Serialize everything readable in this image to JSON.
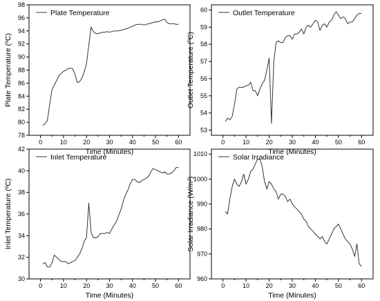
{
  "chart_data": [
    {
      "type": "line",
      "xlabel": "Time (Minutes)",
      "ylabel": "Plate Temperature (ºC)",
      "legend": "top-left",
      "grid": false,
      "xlim": [
        -5,
        65
      ],
      "ylim": [
        78,
        98
      ],
      "xticks": [
        "0",
        "10",
        "20",
        "30",
        "40",
        "50",
        "60"
      ],
      "yticks": [
        "78",
        "80",
        "82",
        "84",
        "86",
        "88",
        "90",
        "92",
        "94",
        "96",
        "98"
      ],
      "series": [
        {
          "name": "Plate Temperature",
          "color": "#333333",
          "x": [
            1,
            2,
            3,
            4,
            5,
            6,
            7,
            8,
            9,
            10,
            11,
            12,
            13,
            14,
            15,
            16,
            17,
            18,
            19,
            20,
            21,
            22,
            23,
            24,
            25,
            26,
            27,
            28,
            29,
            30,
            31,
            32,
            33,
            34,
            35,
            36,
            37,
            38,
            39,
            40,
            41,
            42,
            43,
            44,
            45,
            46,
            47,
            48,
            49,
            50,
            51,
            52,
            53,
            54,
            55,
            56,
            57,
            58,
            59,
            60
          ],
          "y": [
            79.5,
            79.8,
            80.3,
            82.8,
            85.0,
            85.7,
            86.4,
            87.1,
            87.5,
            87.8,
            88.0,
            88.2,
            88.3,
            88.2,
            87.3,
            86.1,
            86.2,
            86.8,
            87.7,
            89.0,
            91.8,
            94.6,
            93.9,
            93.6,
            93.6,
            93.7,
            93.8,
            93.8,
            93.9,
            93.8,
            93.9,
            94.0,
            94.0,
            94.0,
            94.1,
            94.2,
            94.3,
            94.4,
            94.6,
            94.7,
            94.9,
            95.0,
            95.0,
            95.0,
            94.9,
            95.0,
            95.1,
            95.2,
            95.3,
            95.4,
            95.4,
            95.5,
            95.7,
            95.8,
            95.3,
            95.1,
            95.1,
            95.1,
            95.0,
            95.0
          ]
        }
      ]
    },
    {
      "type": "line",
      "xlabel": "Time (Minutes)",
      "ylabel": "Outlet Temperature (ºC)",
      "legend": "top-left",
      "grid": false,
      "xlim": [
        -5,
        65
      ],
      "ylim": [
        52.7,
        60.3
      ],
      "xticks": [
        "0",
        "10",
        "20",
        "30",
        "40",
        "50",
        "60"
      ],
      "yticks": [
        "53",
        "54",
        "55",
        "56",
        "57",
        "58",
        "59",
        "60"
      ],
      "series": [
        {
          "name": "Outlet Temperature",
          "color": "#333333",
          "x": [
            1,
            2,
            3,
            4,
            5,
            6,
            7,
            8,
            9,
            10,
            11,
            12,
            13,
            14,
            15,
            16,
            17,
            18,
            19,
            20,
            21,
            22,
            23,
            24,
            25,
            26,
            27,
            28,
            29,
            30,
            31,
            32,
            33,
            34,
            35,
            36,
            37,
            38,
            39,
            40,
            41,
            42,
            43,
            44,
            45,
            46,
            47,
            48,
            49,
            50,
            51,
            52,
            53,
            54,
            55,
            56,
            57,
            58,
            59,
            60
          ],
          "y": [
            53.5,
            53.7,
            53.6,
            53.8,
            54.5,
            55.4,
            55.5,
            55.5,
            55.5,
            55.6,
            55.6,
            55.8,
            55.3,
            55.3,
            55.0,
            55.4,
            55.7,
            55.9,
            56.5,
            57.2,
            53.4,
            57.0,
            58.1,
            58.2,
            58.1,
            58.1,
            58.4,
            58.5,
            58.5,
            58.3,
            58.6,
            58.6,
            58.7,
            58.9,
            58.6,
            59.0,
            59.1,
            59.0,
            59.2,
            59.4,
            59.3,
            58.8,
            59.1,
            59.2,
            59.0,
            59.3,
            59.4,
            59.7,
            59.9,
            59.7,
            59.5,
            59.6,
            59.5,
            59.2,
            59.3,
            59.3,
            59.5,
            59.7,
            59.8,
            59.8
          ]
        }
      ]
    },
    {
      "type": "line",
      "xlabel": "Time (Minutes)",
      "ylabel": "Inlet Temperature (ºC)",
      "legend": "top-left",
      "grid": false,
      "xlim": [
        -5,
        65
      ],
      "ylim": [
        30,
        42
      ],
      "xticks": [
        "0",
        "10",
        "20",
        "30",
        "40",
        "50",
        "60"
      ],
      "yticks": [
        "30",
        "32",
        "34",
        "36",
        "38",
        "40",
        "42"
      ],
      "series": [
        {
          "name": "Inlet Temperature",
          "color": "#333333",
          "x": [
            1,
            2,
            3,
            4,
            5,
            6,
            7,
            8,
            9,
            10,
            11,
            12,
            13,
            14,
            15,
            16,
            17,
            18,
            19,
            20,
            21,
            22,
            23,
            24,
            25,
            26,
            27,
            28,
            29,
            30,
            31,
            32,
            33,
            34,
            35,
            36,
            37,
            38,
            39,
            40,
            41,
            42,
            43,
            44,
            45,
            46,
            47,
            48,
            49,
            50,
            51,
            52,
            53,
            54,
            55,
            56,
            57,
            58,
            59,
            60
          ],
          "y": [
            31.4,
            31.5,
            31.1,
            31.1,
            31.5,
            32.2,
            32.0,
            31.8,
            31.6,
            31.6,
            31.6,
            31.4,
            31.5,
            31.6,
            31.7,
            32.0,
            32.3,
            32.8,
            33.5,
            33.8,
            37.0,
            34.3,
            33.8,
            33.8,
            33.9,
            34.2,
            34.2,
            34.2,
            34.3,
            34.2,
            34.6,
            35.0,
            35.3,
            35.9,
            36.4,
            37.2,
            37.8,
            38.2,
            38.8,
            39.2,
            39.2,
            39.0,
            38.9,
            39.1,
            39.2,
            39.3,
            39.5,
            39.9,
            40.2,
            40.1,
            40.0,
            39.9,
            39.8,
            39.9,
            39.7,
            39.7,
            39.8,
            40.0,
            40.3,
            40.3
          ]
        }
      ]
    },
    {
      "type": "line",
      "xlabel": "Time (Minutes)",
      "ylabel": "Solar Irradiance (W/m²)",
      "legend": "top-left",
      "grid": false,
      "xlim": [
        -5,
        65
      ],
      "ylim": [
        960,
        1012
      ],
      "xticks": [
        "0",
        "10",
        "20",
        "30",
        "40",
        "50",
        "60"
      ],
      "yticks": [
        "960",
        "970",
        "980",
        "990",
        "1000",
        "1010"
      ],
      "series": [
        {
          "name": "Solar Irradiance",
          "color": "#333333",
          "x": [
            1,
            2,
            3,
            4,
            5,
            6,
            7,
            8,
            9,
            10,
            11,
            12,
            13,
            14,
            15,
            16,
            17,
            18,
            19,
            20,
            21,
            22,
            23,
            24,
            25,
            26,
            27,
            28,
            29,
            30,
            31,
            32,
            33,
            34,
            35,
            36,
            37,
            38,
            39,
            40,
            41,
            42,
            43,
            44,
            45,
            46,
            47,
            48,
            49,
            50,
            51,
            52,
            53,
            54,
            55,
            56,
            57,
            58,
            59,
            60
          ],
          "y": [
            987,
            986,
            992,
            997,
            1000,
            998,
            997,
            999,
            1002,
            998,
            1000,
            1003,
            1004,
            1006,
            1008,
            1008,
            1005,
            999,
            996,
            999,
            998,
            996,
            995,
            992,
            994,
            994,
            993,
            991,
            992,
            990,
            989,
            988,
            987,
            986,
            984,
            983,
            981,
            980,
            979,
            978,
            977,
            976,
            977,
            975,
            974,
            976,
            978,
            980,
            981,
            982,
            980,
            978,
            976,
            975,
            974,
            972,
            969,
            974,
            966,
            965
          ]
        }
      ]
    }
  ]
}
